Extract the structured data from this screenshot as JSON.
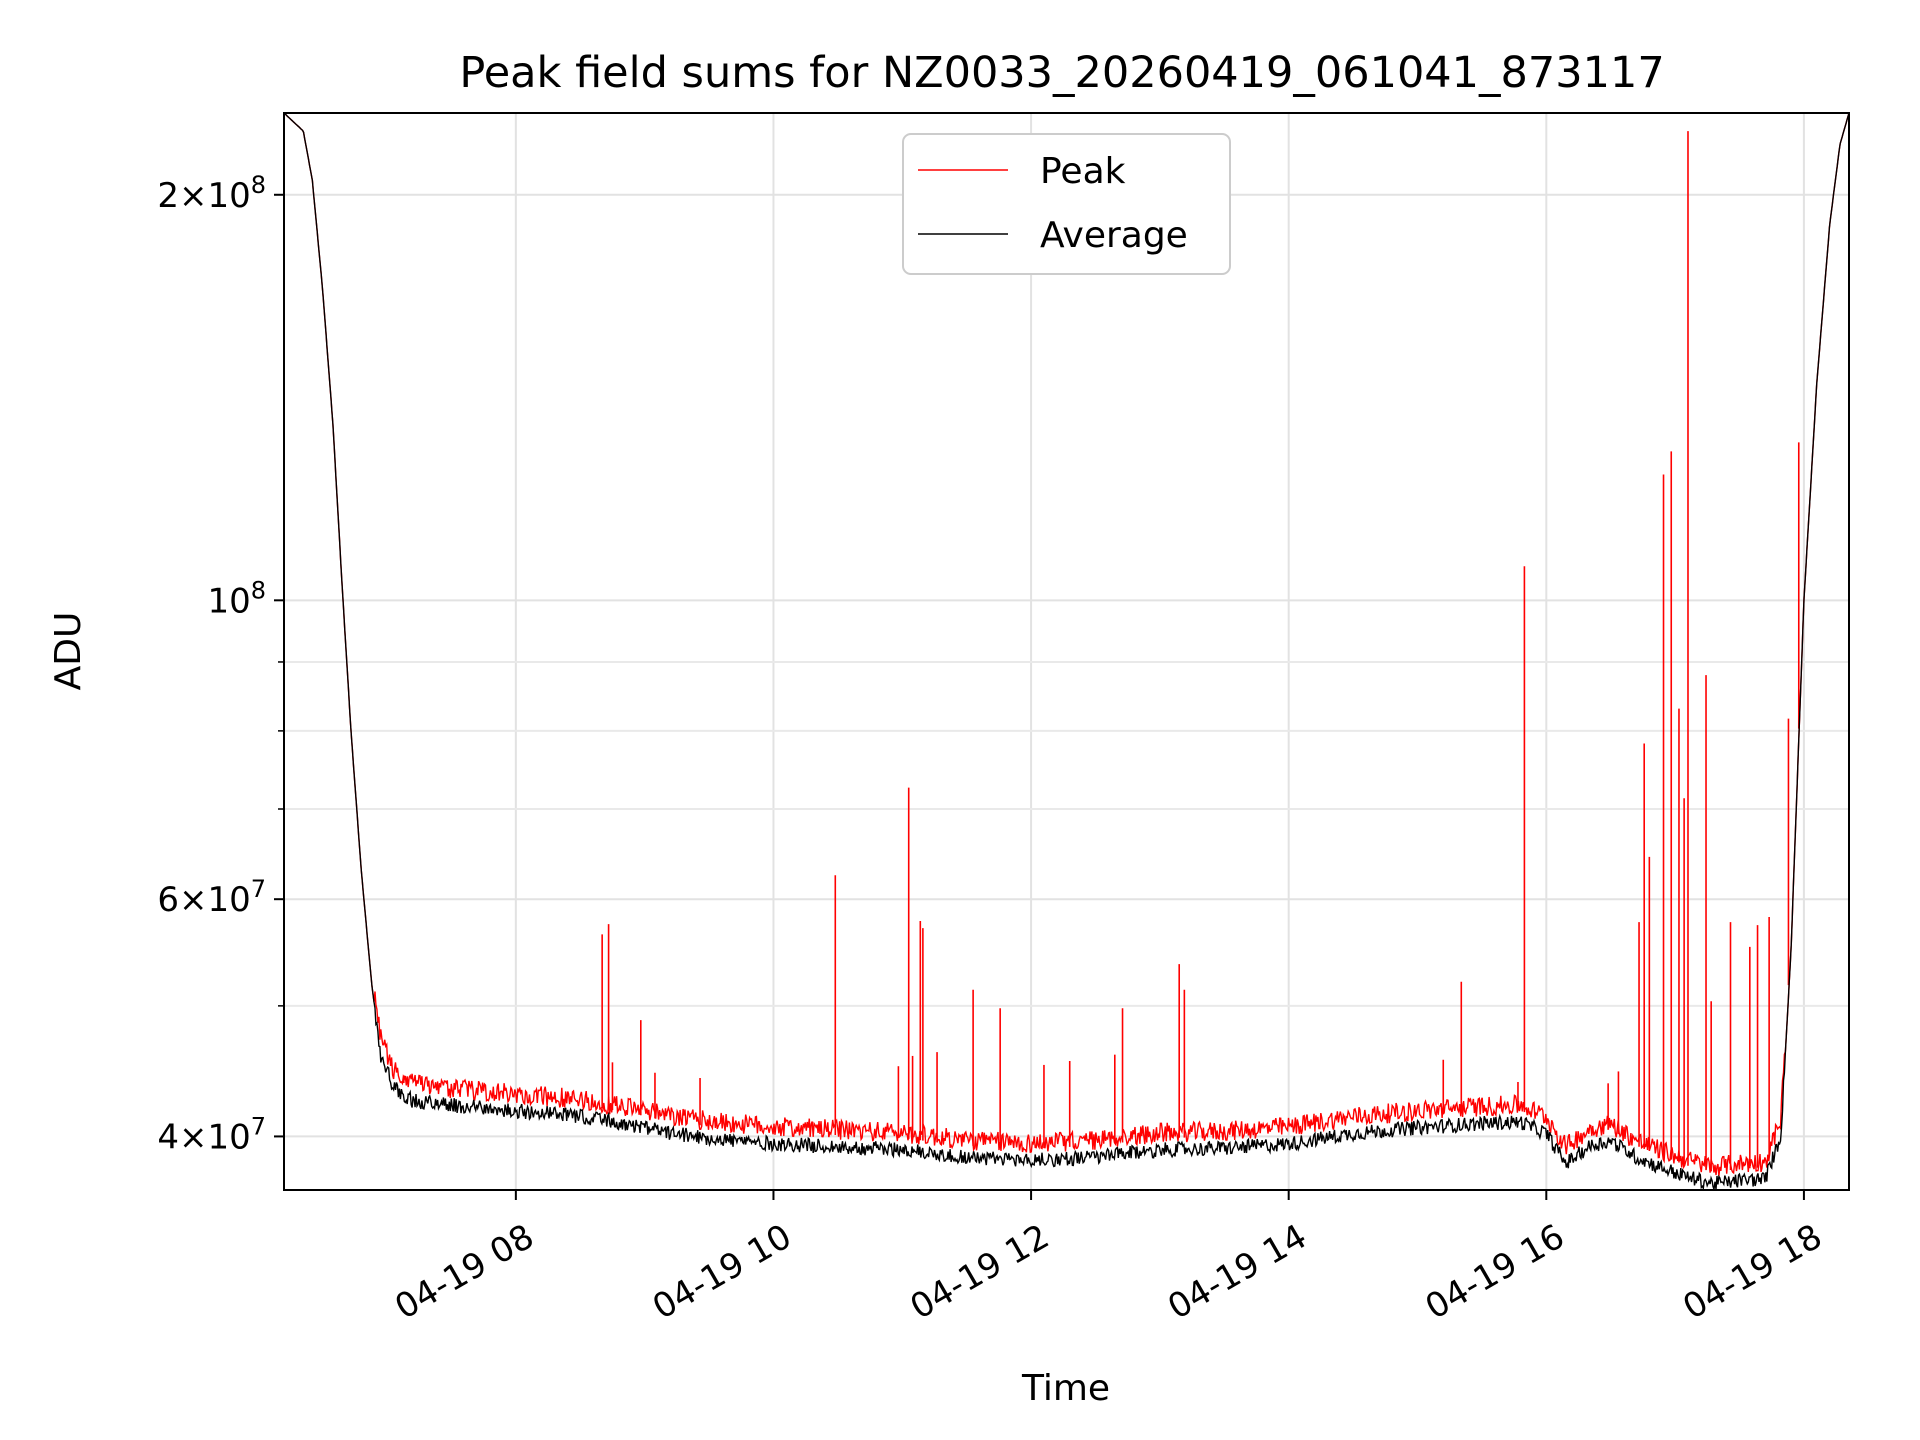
{
  "chart_data": {
    "type": "line",
    "title": "Peak field sums for NZ0033_20260419_061041_873117",
    "xlabel": "Time",
    "ylabel": "ADU",
    "yscale": "log",
    "xlim": [
      6.2,
      18.35
    ],
    "ylim": [
      36500000,
      230000000
    ],
    "grid": true,
    "legend_position": "upper center",
    "x_ticks": [
      {
        "value": 8,
        "label": "04-19 08"
      },
      {
        "value": 10,
        "label": "04-19 10"
      },
      {
        "value": 12,
        "label": "04-19 12"
      },
      {
        "value": 14,
        "label": "04-19 14"
      },
      {
        "value": 16,
        "label": "04-19 16"
      },
      {
        "value": 18,
        "label": "04-19 18"
      }
    ],
    "y_major_ticks": [
      {
        "value": 40000000,
        "mant": "4",
        "exp": "7"
      },
      {
        "value": 60000000,
        "mant": "6",
        "exp": "7"
      },
      {
        "value": 100000000,
        "mant": "",
        "exp": "8"
      },
      {
        "value": 200000000,
        "mant": "2",
        "exp": "8"
      }
    ],
    "y_minor_ticks": [
      50000000,
      70000000,
      80000000,
      90000000
    ],
    "series": [
      {
        "name": "Average",
        "color": "#000000",
        "points": [
          [
            6.2,
            230000000
          ],
          [
            6.35,
            223000000
          ],
          [
            6.42,
            205000000
          ],
          [
            6.5,
            170000000
          ],
          [
            6.58,
            135000000
          ],
          [
            6.65,
            103000000
          ],
          [
            6.72,
            80000000
          ],
          [
            6.8,
            63000000
          ],
          [
            6.88,
            52000000
          ],
          [
            6.95,
            46000000
          ],
          [
            7.05,
            43500000
          ],
          [
            7.2,
            42500000
          ],
          [
            7.5,
            42200000
          ],
          [
            8.0,
            41800000
          ],
          [
            8.5,
            41400000
          ],
          [
            8.9,
            40800000
          ],
          [
            9.2,
            40200000
          ],
          [
            9.6,
            39800000
          ],
          [
            10.0,
            39500000
          ],
          [
            10.5,
            39300000
          ],
          [
            11.0,
            39100000
          ],
          [
            11.5,
            38600000
          ],
          [
            12.0,
            38400000
          ],
          [
            12.5,
            38600000
          ],
          [
            13.0,
            39100000
          ],
          [
            13.5,
            39200000
          ],
          [
            14.0,
            39500000
          ],
          [
            14.5,
            40200000
          ],
          [
            15.0,
            40600000
          ],
          [
            15.5,
            40900000
          ],
          [
            15.8,
            41000000
          ],
          [
            16.0,
            40200000
          ],
          [
            16.15,
            38200000
          ],
          [
            16.25,
            38800000
          ],
          [
            16.35,
            39400000
          ],
          [
            16.5,
            39700000
          ],
          [
            16.7,
            38600000
          ],
          [
            16.9,
            37900000
          ],
          [
            17.1,
            37300000
          ],
          [
            17.3,
            36900000
          ],
          [
            17.5,
            37100000
          ],
          [
            17.7,
            37200000
          ],
          [
            17.82,
            40000000
          ],
          [
            17.9,
            55000000
          ],
          [
            18.0,
            100000000
          ],
          [
            18.1,
            145000000
          ],
          [
            18.2,
            190000000
          ],
          [
            18.28,
            218000000
          ],
          [
            18.35,
            230000000
          ]
        ]
      },
      {
        "name": "Peak",
        "color": "#ff0000",
        "spikes": [
          [
            7.13,
            44400000
          ],
          [
            8.67,
            56500000
          ],
          [
            8.72,
            57500000
          ],
          [
            8.75,
            45400000
          ],
          [
            8.97,
            48800000
          ],
          [
            9.08,
            44600000
          ],
          [
            9.43,
            44200000
          ],
          [
            10.48,
            62500000
          ],
          [
            10.97,
            45100000
          ],
          [
            11.05,
            72600000
          ],
          [
            11.08,
            45900000
          ],
          [
            11.14,
            57800000
          ],
          [
            11.16,
            57100000
          ],
          [
            11.27,
            46200000
          ],
          [
            11.55,
            51400000
          ],
          [
            11.76,
            49800000
          ],
          [
            12.1,
            45200000
          ],
          [
            12.3,
            45500000
          ],
          [
            12.65,
            46000000
          ],
          [
            12.71,
            49800000
          ],
          [
            13.15,
            53700000
          ],
          [
            13.19,
            51400000
          ],
          [
            15.2,
            45600000
          ],
          [
            15.34,
            52100000
          ],
          [
            15.78,
            43900000
          ],
          [
            15.83,
            106000000
          ],
          [
            16.48,
            43800000
          ],
          [
            16.56,
            44700000
          ],
          [
            16.72,
            57700000
          ],
          [
            16.76,
            78300000
          ],
          [
            16.8,
            64500000
          ],
          [
            16.91,
            124000000
          ],
          [
            16.97,
            129000000
          ],
          [
            17.03,
            83100000
          ],
          [
            17.07,
            71300000
          ],
          [
            17.1,
            223000000
          ],
          [
            17.24,
            88000000
          ],
          [
            17.28,
            50400000
          ],
          [
            17.43,
            57700000
          ],
          [
            17.58,
            55300000
          ],
          [
            17.64,
            57400000
          ],
          [
            17.73,
            58200000
          ],
          [
            17.88,
            81700000
          ],
          [
            17.96,
            131000000
          ]
        ]
      }
    ]
  }
}
